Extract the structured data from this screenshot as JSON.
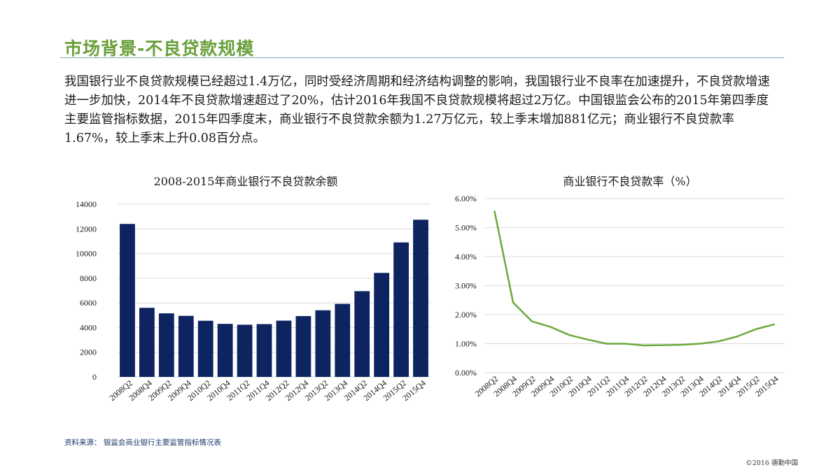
{
  "slide": {
    "title": "市场背景-不良贷款规模",
    "body": "我国银行业不良贷款规模已经超过1.4万亿，同时受经济周期和经济结构调整的影响，我国银行业不良率在加速提升，不良贷款增速进一步加快，2014年不良贷款增速超过了20%，估计2016年我国不良贷款规模将超过2万亿。中国银监会公布的2015年第四季度主要监管指标数据，2015年四季度末，商业银行不良贷款余额为1.27万亿元，较上季末增加881亿元；商业银行不良贷款率1.67%，较上季末上升0.08百分点。",
    "source": "资料来源：  银监会商业银行主要监管指标情况表",
    "copyright": "©2016 德勤中国"
  },
  "colors": {
    "title": "#6aa03a",
    "bar": "#0d2461",
    "line": "#6aaa3c",
    "grid": "#d9d9d9"
  },
  "chart_data": [
    {
      "type": "bar",
      "title": "2008-2015年商业银行不良贷款余额",
      "categories": [
        "2008Q2",
        "2008Q4",
        "2009Q2",
        "2009Q4",
        "2010Q2",
        "2010Q4",
        "2011Q2",
        "2011Q4",
        "2012Q2",
        "2012Q4",
        "2013Q2",
        "2013Q4",
        "2014Q2",
        "2014Q4",
        "2015Q2",
        "2015Q4"
      ],
      "values": [
        12400,
        5600,
        5150,
        4950,
        4550,
        4300,
        4230,
        4280,
        4560,
        4930,
        5400,
        5920,
        6950,
        8430,
        10900,
        12740
      ],
      "ylim": [
        0,
        14000
      ],
      "yticks": [
        0,
        2000,
        4000,
        6000,
        8000,
        10000,
        12000,
        14000
      ],
      "grid": true
    },
    {
      "type": "line",
      "title": "商业银行不良贷款率（%）",
      "categories": [
        "2008Q2",
        "2008Q4",
        "2009Q2",
        "2009Q4",
        "2010Q2",
        "2010Q4",
        "2011Q2",
        "2011Q4",
        "2012Q2",
        "2012Q4",
        "2013Q2",
        "2013Q4",
        "2014Q2",
        "2014Q4",
        "2015Q2",
        "2015Q4"
      ],
      "values": [
        5.58,
        2.42,
        1.77,
        1.58,
        1.3,
        1.14,
        1.0,
        1.0,
        0.94,
        0.95,
        0.96,
        1.0,
        1.08,
        1.25,
        1.5,
        1.67
      ],
      "ylim": [
        0,
        6
      ],
      "yticks": [
        "0.00%",
        "1.00%",
        "2.00%",
        "3.00%",
        "4.00%",
        "5.00%",
        "6.00%"
      ],
      "grid": true
    }
  ]
}
